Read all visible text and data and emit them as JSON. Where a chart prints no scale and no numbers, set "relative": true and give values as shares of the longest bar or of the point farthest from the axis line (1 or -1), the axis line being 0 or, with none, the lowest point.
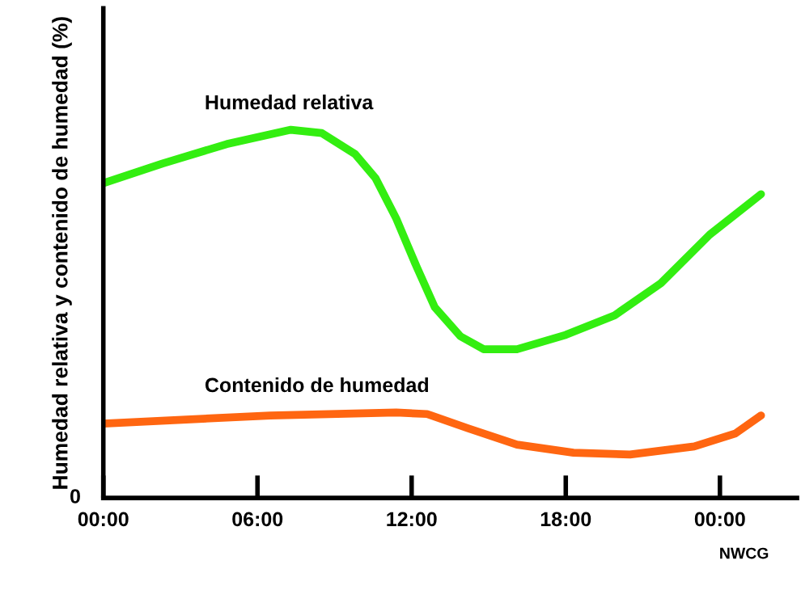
{
  "chart_data": {
    "type": "line",
    "relative": true,
    "ylabel": "Humedad relativa y contenido de humedad (%)",
    "xlim": [
      0,
      27
    ],
    "xticks": [
      {
        "value": 0,
        "label": "00:00"
      },
      {
        "value": 6,
        "label": "06:00"
      },
      {
        "value": 12,
        "label": "12:00"
      },
      {
        "value": 18,
        "label": "18:00"
      },
      {
        "value": 24,
        "label": "00:00"
      }
    ],
    "grid": false,
    "legend": false,
    "marker": "none",
    "line_style": "solid",
    "annotations": [
      "0",
      "NWCG"
    ],
    "series": [
      {
        "name": "Humedad relativa",
        "color": "#33ee11",
        "x": [
          0,
          2.3,
          4.8,
          7.3,
          8.5,
          9.8,
          10.6,
          11.4,
          12.2,
          12.9,
          13.9,
          14.8,
          16.1,
          18.0,
          19.9,
          21.7,
          23.6,
          25.6
        ],
        "values": [
          0.855,
          0.908,
          0.961,
          1,
          0.991,
          0.934,
          0.868,
          0.759,
          0.627,
          0.518,
          0.439,
          0.404,
          0.404,
          0.443,
          0.496,
          0.583,
          0.715,
          0.825
        ]
      },
      {
        "name": "Contenido de humedad",
        "color": "#ff6611",
        "x": [
          0,
          6.5,
          11.4,
          12.6,
          14.2,
          16.1,
          18.3,
          20.5,
          23.0,
          24.6,
          25.6
        ],
        "values": [
          0.202,
          0.224,
          0.232,
          0.228,
          0.189,
          0.145,
          0.123,
          0.118,
          0.14,
          0.175,
          0.224
        ]
      }
    ]
  }
}
